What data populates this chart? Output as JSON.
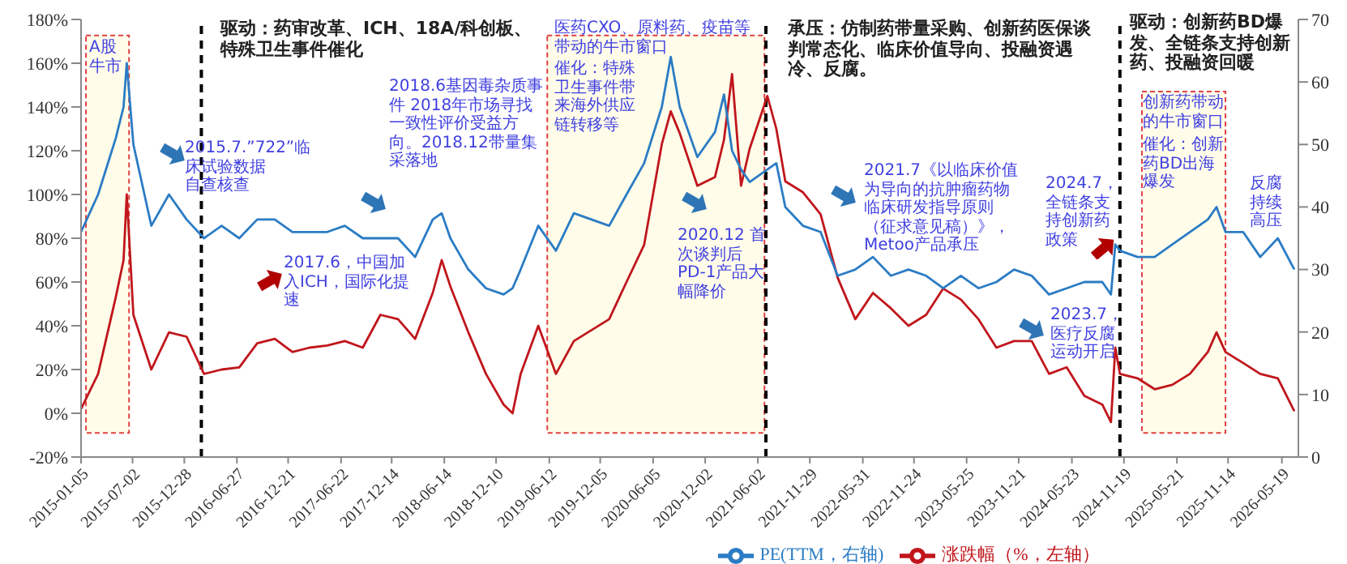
{
  "chart_data": {
    "type": "line",
    "x": [
      "2015-01-05",
      "2015-03-05",
      "2015-05-05",
      "2015-06-01",
      "2015-06-12",
      "2015-07-05",
      "2015-09-05",
      "2015-11-05",
      "2016-01-05",
      "2016-03-05",
      "2016-05-05",
      "2016-07-05",
      "2016-09-05",
      "2016-11-05",
      "2017-01-05",
      "2017-03-05",
      "2017-05-05",
      "2017-07-05",
      "2017-09-05",
      "2017-11-05",
      "2018-01-05",
      "2018-03-05",
      "2018-05-05",
      "2018-06-05",
      "2018-07-05",
      "2018-09-05",
      "2018-11-05",
      "2019-01-05",
      "2019-02-05",
      "2019-03-05",
      "2019-05-05",
      "2019-07-05",
      "2019-09-05",
      "2019-11-05",
      "2020-01-05",
      "2020-03-05",
      "2020-05-05",
      "2020-07-05",
      "2020-08-05",
      "2020-09-05",
      "2020-11-05",
      "2021-01-05",
      "2021-02-05",
      "2021-03-05",
      "2021-04-05",
      "2021-05-05",
      "2021-07-05",
      "2021-08-05",
      "2021-09-05",
      "2021-11-05",
      "2022-01-05",
      "2022-03-05",
      "2022-05-05",
      "2022-07-05",
      "2022-09-05",
      "2022-11-05",
      "2023-01-05",
      "2023-03-05",
      "2023-05-05",
      "2023-07-05",
      "2023-09-05",
      "2023-11-05",
      "2024-01-05",
      "2024-03-05",
      "2024-05-05",
      "2024-07-05",
      "2024-09-05",
      "2024-10-05",
      "2024-10-20",
      "2024-11-05",
      "2025-01-05",
      "2025-03-05",
      "2025-05-05",
      "2025-07-05",
      "2025-09-05",
      "2025-10-05",
      "2025-11-05",
      "2026-01-05",
      "2026-03-05",
      "2026-05-05",
      "2026-07-01"
    ],
    "series": [
      {
        "name": "涨跌幅（%，左轴）",
        "color": "#c0161c",
        "values": [
          2,
          18,
          53,
          70,
          100,
          45,
          20,
          37,
          35,
          18,
          20,
          21,
          32,
          34,
          28,
          30,
          31,
          33,
          30,
          45,
          43,
          34,
          55,
          70,
          58,
          37,
          18,
          4,
          0,
          18,
          40,
          18,
          33,
          38,
          43,
          60,
          77,
          123,
          138,
          128,
          104,
          108,
          125,
          155,
          104,
          121,
          145,
          130,
          106,
          101,
          91,
          62,
          43,
          55,
          48,
          40,
          45,
          57,
          52,
          43,
          30,
          33,
          33,
          18,
          21,
          8,
          4,
          -4,
          30,
          18,
          16,
          11,
          13,
          18,
          28,
          37,
          28,
          23,
          18,
          16,
          1
        ]
      },
      {
        "name": "PE(TTM，右轴)",
        "color": "#2b7cc4",
        "axis": "y2",
        "values": [
          36,
          42,
          51,
          56,
          63,
          50,
          37,
          42,
          38,
          35,
          37,
          35,
          38,
          38,
          36,
          36,
          36,
          37,
          35,
          35,
          35,
          32,
          38,
          39,
          35,
          30,
          27,
          26,
          27,
          30,
          37,
          33,
          39,
          38,
          37,
          42,
          47,
          56,
          64,
          56,
          48,
          52,
          58,
          49,
          46,
          44,
          46,
          47,
          40,
          37,
          36,
          29,
          30,
          32,
          29,
          30,
          29,
          27,
          29,
          27,
          28,
          30,
          29,
          26,
          27,
          28,
          28,
          26,
          34,
          33,
          32,
          32,
          34,
          36,
          38,
          40,
          36,
          36,
          32,
          35,
          30
        ]
      }
    ],
    "xlim": [
      "2015-01-05",
      "2026-07-15"
    ],
    "xticks": [
      "2015-01-05",
      "2015-07-02",
      "2015-12-28",
      "2016-06-27",
      "2016-12-21",
      "2017-06-22",
      "2017-12-14",
      "2018-06-14",
      "2018-12-10",
      "2019-06-12",
      "2019-12-05",
      "2020-06-05",
      "2020-12-02",
      "2021-06-02",
      "2021-11-29",
      "2022-05-31",
      "2022-11-24",
      "2023-05-25",
      "2023-11-21",
      "2024-05-23",
      "2024-11-19",
      "2025-05-21",
      "2025-11-14",
      "2026-05-19"
    ],
    "ylim": [
      -20,
      180
    ],
    "yticks": [
      {
        "value": -20,
        "label": "-20%"
      },
      {
        "value": 0,
        "label": "0%"
      },
      {
        "value": 20,
        "label": "20%"
      },
      {
        "value": 40,
        "label": "40%"
      },
      {
        "value": 60,
        "label": "60%"
      },
      {
        "value": 80,
        "label": "80%"
      },
      {
        "value": 100,
        "label": "100%"
      },
      {
        "value": 120,
        "label": "120%"
      },
      {
        "value": 140,
        "label": "140%"
      },
      {
        "value": 160,
        "label": "160%"
      },
      {
        "value": 180,
        "label": "180%"
      }
    ],
    "y2lim": [
      0,
      70
    ],
    "y2ticks": [
      0,
      10,
      20,
      30,
      40,
      50,
      60,
      70
    ],
    "ref_lines": [
      {
        "axis": "x",
        "value": "2016-02-25",
        "color": "#000000",
        "line_style": "dashed"
      },
      {
        "axis": "x",
        "value": "2021-06-30",
        "color": "#000000",
        "line_style": "dashed"
      },
      {
        "axis": "x",
        "value": "2024-11-05",
        "color": "#000000",
        "line_style": "dashed"
      }
    ],
    "bands": [
      {
        "axis": "x",
        "from": "2015-01-22",
        "to": "2015-06-20",
        "color": "#fffcea"
      },
      {
        "axis": "x",
        "from": "2019-06-05",
        "to": "2021-06-25",
        "color": "#fffcea"
      },
      {
        "axis": "x",
        "from": "2025-01-20",
        "to": "2025-11-05",
        "color": "#fffcea"
      }
    ],
    "annotations": [
      "驱动：药审改革、ICH、18A/科创板、特殊卫生事件催化",
      "承压：仿制药带量采购、创新药医保谈判常态化、临床价值导向、投融资遇冷、反腐。",
      "驱动：创新药BD爆发、全链条支持创新药、投融资回暖",
      "A股牛市",
      "2015.7.”722”临床试验数据自查核查",
      "2017.6，中国加入ICH，国际化提速",
      "2018.6基因毒杂质事件 2018年市场寻找一致性评价受益方向。2018.12带量集采落地",
      "医药CXO、原料药、疫苗等带动的牛市窗口",
      "催化：特殊卫生事件带来海外供应链转移等",
      "2020.12 首次谈判后PD-1产品大幅降价",
      "2021.7《以临床价值为导向的抗肿瘤药物临床研发指导原则（征求意见稿）》，Metoo产品承压",
      "2023.7，医疗反腐运动开启",
      "2024.7，全链条支持创新药政策",
      "创新药带动的牛市窗口",
      "催化：创新药BD出海爆发",
      "反腐持续高压"
    ],
    "legend": "bottom"
  }
}
